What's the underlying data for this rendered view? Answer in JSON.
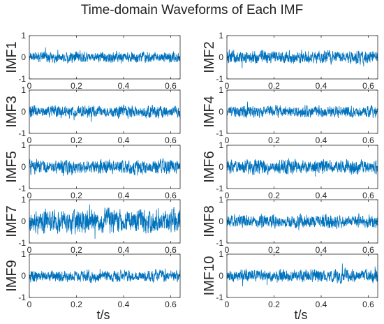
{
  "title": "Time-domain Waveforms of Each IMF",
  "colors": {
    "line": "#0072BD",
    "axis": "#262626",
    "background": "#ffffff"
  },
  "chart_data": {
    "type": "line",
    "title": "Time-domain Waveforms of Each IMF",
    "xlabel": "t/s",
    "xlim": [
      0,
      0.64
    ],
    "ylim": [
      -1,
      1
    ],
    "xticks": [
      "0",
      "0.2",
      "0.4",
      "0.6"
    ],
    "yticks": [
      "-1",
      "0",
      "1"
    ],
    "grid": false,
    "layout": "5 rows x 2 columns of subplots",
    "series": [
      {
        "name": "IMF1",
        "amplitude": 0.25
      },
      {
        "name": "IMF2",
        "amplitude": 0.3
      },
      {
        "name": "IMF3",
        "amplitude": 0.28
      },
      {
        "name": "IMF4",
        "amplitude": 0.27
      },
      {
        "name": "IMF5",
        "amplitude": 0.32
      },
      {
        "name": "IMF6",
        "amplitude": 0.33
      },
      {
        "name": "IMF7",
        "amplitude": 0.55
      },
      {
        "name": "IMF8",
        "amplitude": 0.3
      },
      {
        "name": "IMF9",
        "amplitude": 0.27
      },
      {
        "name": "IMF10",
        "amplitude": 0.3
      }
    ]
  }
}
